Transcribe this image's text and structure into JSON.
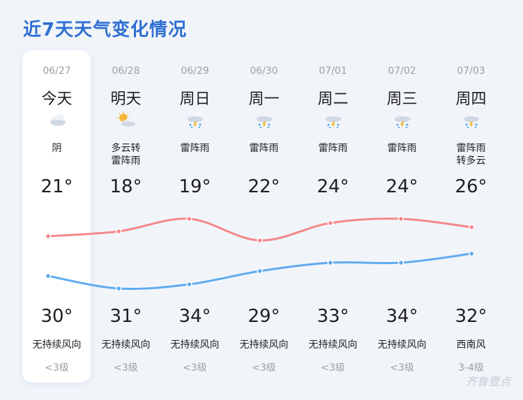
{
  "title": "近7天天气变化情况",
  "watermark": "齐鲁壹点",
  "colors": {
    "high_line": "#f4878a",
    "low_line": "#5fabee",
    "title": "#2f6fd1"
  },
  "days": [
    {
      "date": "06/27",
      "dow": "今天",
      "icon": "cloudy-icon",
      "cond": "阴",
      "high": "21°",
      "low": "30°",
      "wind_dir": "无持续风向",
      "wind_level": "<3级"
    },
    {
      "date": "06/28",
      "dow": "明天",
      "icon": "partly-cloudy-icon",
      "cond": "多云转\n雷阵雨",
      "high": "18°",
      "low": "31°",
      "wind_dir": "无持续风向",
      "wind_level": "<3级"
    },
    {
      "date": "06/29",
      "dow": "周日",
      "icon": "thunderstorm-icon",
      "cond": "雷阵雨",
      "high": "19°",
      "low": "34°",
      "wind_dir": "无持续风向",
      "wind_level": "<3级"
    },
    {
      "date": "06/30",
      "dow": "周一",
      "icon": "thunderstorm-icon",
      "cond": "雷阵雨",
      "high": "22°",
      "low": "29°",
      "wind_dir": "无持续风向",
      "wind_level": "<3级"
    },
    {
      "date": "07/01",
      "dow": "周二",
      "icon": "thunderstorm-icon",
      "cond": "雷阵雨",
      "high": "24°",
      "low": "33°",
      "wind_dir": "无持续风向",
      "wind_level": "<3级"
    },
    {
      "date": "07/02",
      "dow": "周三",
      "icon": "thunderstorm-icon",
      "cond": "雷阵雨",
      "high": "24°",
      "low": "34°",
      "wind_dir": "无持续风向",
      "wind_level": "<3级"
    },
    {
      "date": "07/03",
      "dow": "周四",
      "icon": "thunderstorm-icon",
      "cond": "雷阵雨\n转多云",
      "high": "26°",
      "low": "32°",
      "wind_dir": "西南风",
      "wind_level": "3-4级"
    }
  ]
}
